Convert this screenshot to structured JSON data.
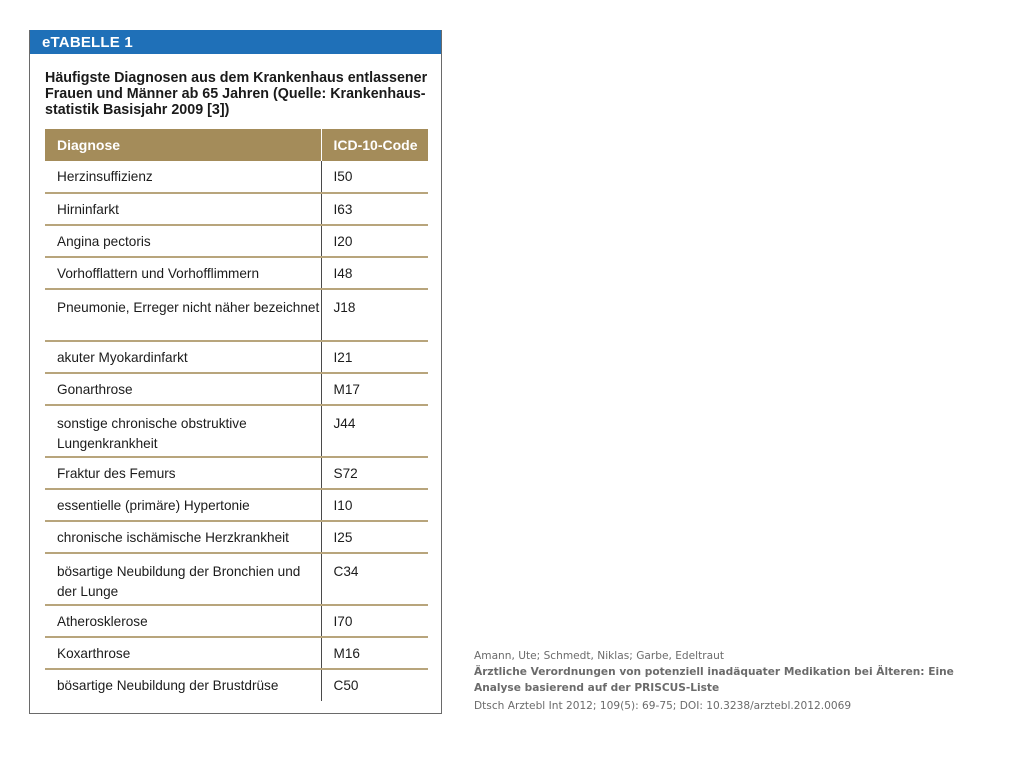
{
  "figure": {
    "label": "eTABELLE 1",
    "title": "Häufigste Diagnosen aus dem Krankenhaus entlassener Frauen und Männer ab 65 Jahren (Quelle: Krankenhaus-statistik Basisjahr 2009 [3])",
    "title_lines": [
      "Häufigste Diagnosen aus dem Krankenhaus entlassener",
      "Frauen und Männer ab 65 Jahren (Quelle: Krankenhaus-",
      "statistik Basisjahr 2009 [3])"
    ],
    "columns": [
      "Diagnose",
      "ICD-10-Code"
    ],
    "rows": [
      {
        "diagnosis": "Herzinsuffizienz",
        "code": "I50"
      },
      {
        "diagnosis": "Hirninfarkt",
        "code": "I63"
      },
      {
        "diagnosis": "Angina pectoris",
        "code": "I20"
      },
      {
        "diagnosis": "Vorhofflattern und Vorhofflimmern",
        "code": "I48"
      },
      {
        "diagnosis": "Pneumonie, Erreger nicht näher bezeichnet",
        "code": "J18"
      },
      {
        "diagnosis": "akuter Myokardinfarkt",
        "code": "I21"
      },
      {
        "diagnosis": "Gonarthrose",
        "code": "M17"
      },
      {
        "diagnosis": "sonstige chronische obstruktive Lungenkrankheit",
        "code": "J44"
      },
      {
        "diagnosis": "Fraktur des Femurs",
        "code": "S72"
      },
      {
        "diagnosis": "essentielle (primäre) Hypertonie",
        "code": "I10"
      },
      {
        "diagnosis": "chronische ischämische Herzkrankheit",
        "code": "I25"
      },
      {
        "diagnosis": "bösartige Neubildung der Bronchien und der Lunge",
        "code": "C34"
      },
      {
        "diagnosis": "Atherosklerose",
        "code": "I70"
      },
      {
        "diagnosis": "Koxarthrose",
        "code": "M16"
      },
      {
        "diagnosis": "bösartige Neubildung der Brustdrüse",
        "code": "C50"
      }
    ]
  },
  "citation": {
    "authors": "Amann, Ute; Schmedt, Niklas; Garbe, Edeltraut",
    "title_line1": "Ärztliche Verordnungen von potenziell inadäquater Medikation bei Älteren: Eine",
    "title_line2": "Analyse basierend auf der PRISCUS-Liste",
    "reference": "Dtsch Arztebl Int 2012; 109(5): 69-75; DOI: 10.3238/arztebl.2012.0069"
  },
  "colors": {
    "header_blue": "#1f70b8",
    "table_header_gold": "#a48c5a",
    "row_rule": "#b8a57c",
    "citation_grey": "#6b6b6b"
  }
}
